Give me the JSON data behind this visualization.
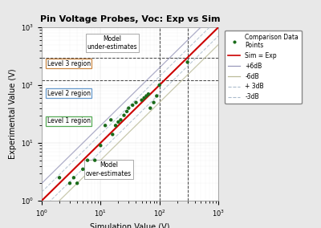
{
  "title": "Pin Voltage Probes, Voc: Exp vs Sim",
  "xlabel": "Simulation Value (V)",
  "ylabel": "Experimental Value (V)",
  "xlim": [
    1,
    1000
  ],
  "ylim": [
    1,
    1000
  ],
  "scatter_x": [
    2,
    3,
    3.5,
    4,
    5,
    6,
    8,
    10,
    12,
    15,
    16,
    18,
    20,
    22,
    25,
    28,
    30,
    35,
    40,
    50,
    55,
    60,
    65,
    70,
    80,
    90,
    100,
    300
  ],
  "scatter_y": [
    2.5,
    2,
    2.5,
    2,
    3.5,
    5,
    5,
    9,
    20,
    25,
    14,
    20,
    23,
    25,
    30,
    35,
    40,
    45,
    50,
    55,
    60,
    65,
    70,
    40,
    50,
    65,
    100,
    250
  ],
  "scatter_color": "#1a6b1a",
  "line_color": "#cc0000",
  "plus6dB_color": "#aaaacc",
  "minus6dB_color": "#ccccaa",
  "plus3dB_color": "#bbbbdd",
  "minus3dB_color": "#bbbbdd",
  "dashed_x1": 100,
  "dashed_x2": 300,
  "dashed_y1": 120,
  "dashed_y2": 300,
  "bg_color": "#ffffff",
  "fig_bg_color": "#e8e8e8"
}
